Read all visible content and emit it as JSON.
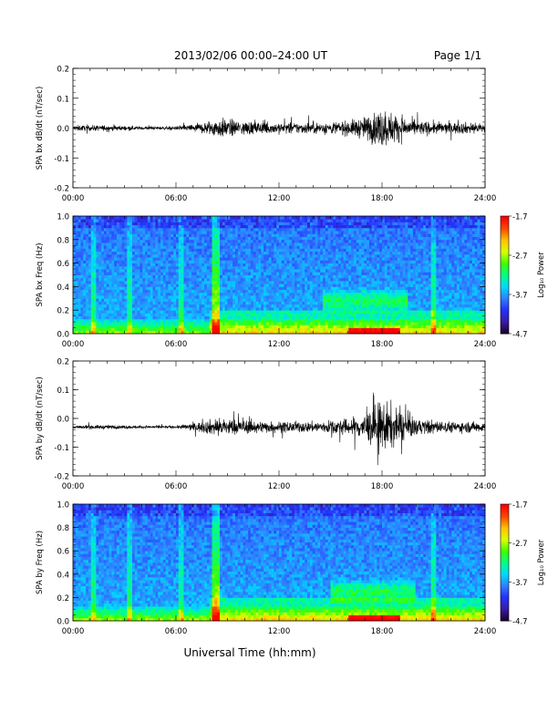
{
  "header": {
    "title": "2013/02/06  00:00–24:00 UT",
    "page_label": "Page 1/1"
  },
  "footer": {
    "xlabel": "Universal Time (hh:mm)"
  },
  "colors": {
    "trace": "#000000",
    "colormap": [
      "#1a0033",
      "#3b1ca6",
      "#2430ff",
      "#2f7fff",
      "#00d9ff",
      "#00ff88",
      "#3aff00",
      "#d9ff00",
      "#ffc400",
      "#ff4a00",
      "#ff0000"
    ]
  },
  "chart_data": [
    {
      "type": "line",
      "ylabel": "SPA bx dB/dt (nT/sec)",
      "xlim": [
        0,
        24
      ],
      "ylim": [
        -0.2,
        0.2
      ],
      "x_ticks": [
        "00:00",
        "06:00",
        "12:00",
        "18:00",
        "24:00"
      ],
      "y_ticks": [
        "0.2",
        "0.1",
        "0.0",
        "-0.1",
        "-0.2"
      ],
      "y_tick_values": [
        0.2,
        0.1,
        0.0,
        -0.1,
        -0.2
      ],
      "activity_profile": {
        "hours": [
          0,
          2,
          4,
          6,
          7.5,
          8.5,
          10,
          12,
          14,
          16,
          17,
          18,
          19,
          20,
          22,
          24
        ],
        "amplitude": [
          0.02,
          0.02,
          0.012,
          0.012,
          0.04,
          0.07,
          0.05,
          0.04,
          0.04,
          0.05,
          0.08,
          0.14,
          0.09,
          0.05,
          0.04,
          0.04
        ]
      },
      "offset": 0.0
    },
    {
      "type": "heatmap",
      "ylabel": "SPA bx Freq (Hz)",
      "xlim": [
        0,
        24
      ],
      "ylim": [
        0,
        1.0
      ],
      "x_ticks": [
        "00:00",
        "06:00",
        "12:00",
        "18:00",
        "24:00"
      ],
      "y_ticks": [
        "1.0",
        "0.8",
        "0.6",
        "0.4",
        "0.2",
        "0.0"
      ],
      "y_tick_values": [
        1.0,
        0.8,
        0.6,
        0.4,
        0.2,
        0.0
      ],
      "colorbar": {
        "label": "Log₁₀ Power",
        "ticks": [
          "-1.7",
          "-2.7",
          "-3.7",
          "-4.7"
        ],
        "tick_values": [
          -1.7,
          -2.7,
          -3.7,
          -4.7
        ],
        "range": [
          -4.7,
          -1.7
        ]
      },
      "features": {
        "spike_hours": [
          8.3,
          1.2,
          3.3,
          6.3,
          21.0
        ],
        "band_center_hz": 0.28,
        "band_hours": [
          14.5,
          19.5
        ]
      }
    },
    {
      "type": "line",
      "ylabel": "SPA by dB/dt (nT/sec)",
      "xlim": [
        0,
        24
      ],
      "ylim": [
        -0.2,
        0.2
      ],
      "x_ticks": [
        "00:00",
        "06:00",
        "12:00",
        "18:00",
        "24:00"
      ],
      "y_ticks": [
        "0.2",
        "0.1",
        "0.0",
        "-0.1",
        "-0.2"
      ],
      "y_tick_values": [
        0.2,
        0.1,
        0.0,
        -0.1,
        -0.2
      ],
      "activity_profile": {
        "hours": [
          0,
          2,
          4,
          6,
          7.5,
          8.5,
          10,
          12,
          14,
          16,
          17,
          18,
          19,
          20,
          22,
          24
        ],
        "amplitude": [
          0.015,
          0.015,
          0.01,
          0.01,
          0.04,
          0.07,
          0.05,
          0.04,
          0.04,
          0.06,
          0.1,
          0.2,
          0.12,
          0.06,
          0.04,
          0.04
        ]
      },
      "offset": -0.03
    },
    {
      "type": "heatmap",
      "ylabel": "SPA by Freq (Hz)",
      "xlim": [
        0,
        24
      ],
      "ylim": [
        0,
        1.0
      ],
      "x_ticks": [
        "00:00",
        "06:00",
        "12:00",
        "18:00",
        "24:00"
      ],
      "y_ticks": [
        "1.0",
        "0.8",
        "0.6",
        "0.4",
        "0.2",
        "0.0"
      ],
      "y_tick_values": [
        1.0,
        0.8,
        0.6,
        0.4,
        0.2,
        0.0
      ],
      "colorbar": {
        "label": "Log₁₀ Power",
        "ticks": [
          "-1.7",
          "-2.7",
          "-3.7",
          "-4.7"
        ],
        "tick_values": [
          -1.7,
          -2.7,
          -3.7,
          -4.7
        ],
        "range": [
          -4.7,
          -1.7
        ]
      },
      "features": {
        "spike_hours": [
          8.3,
          1.2,
          3.3,
          6.3,
          21.0
        ],
        "band_center_hz": 0.25,
        "band_hours": [
          15.0,
          20.0
        ]
      }
    }
  ]
}
